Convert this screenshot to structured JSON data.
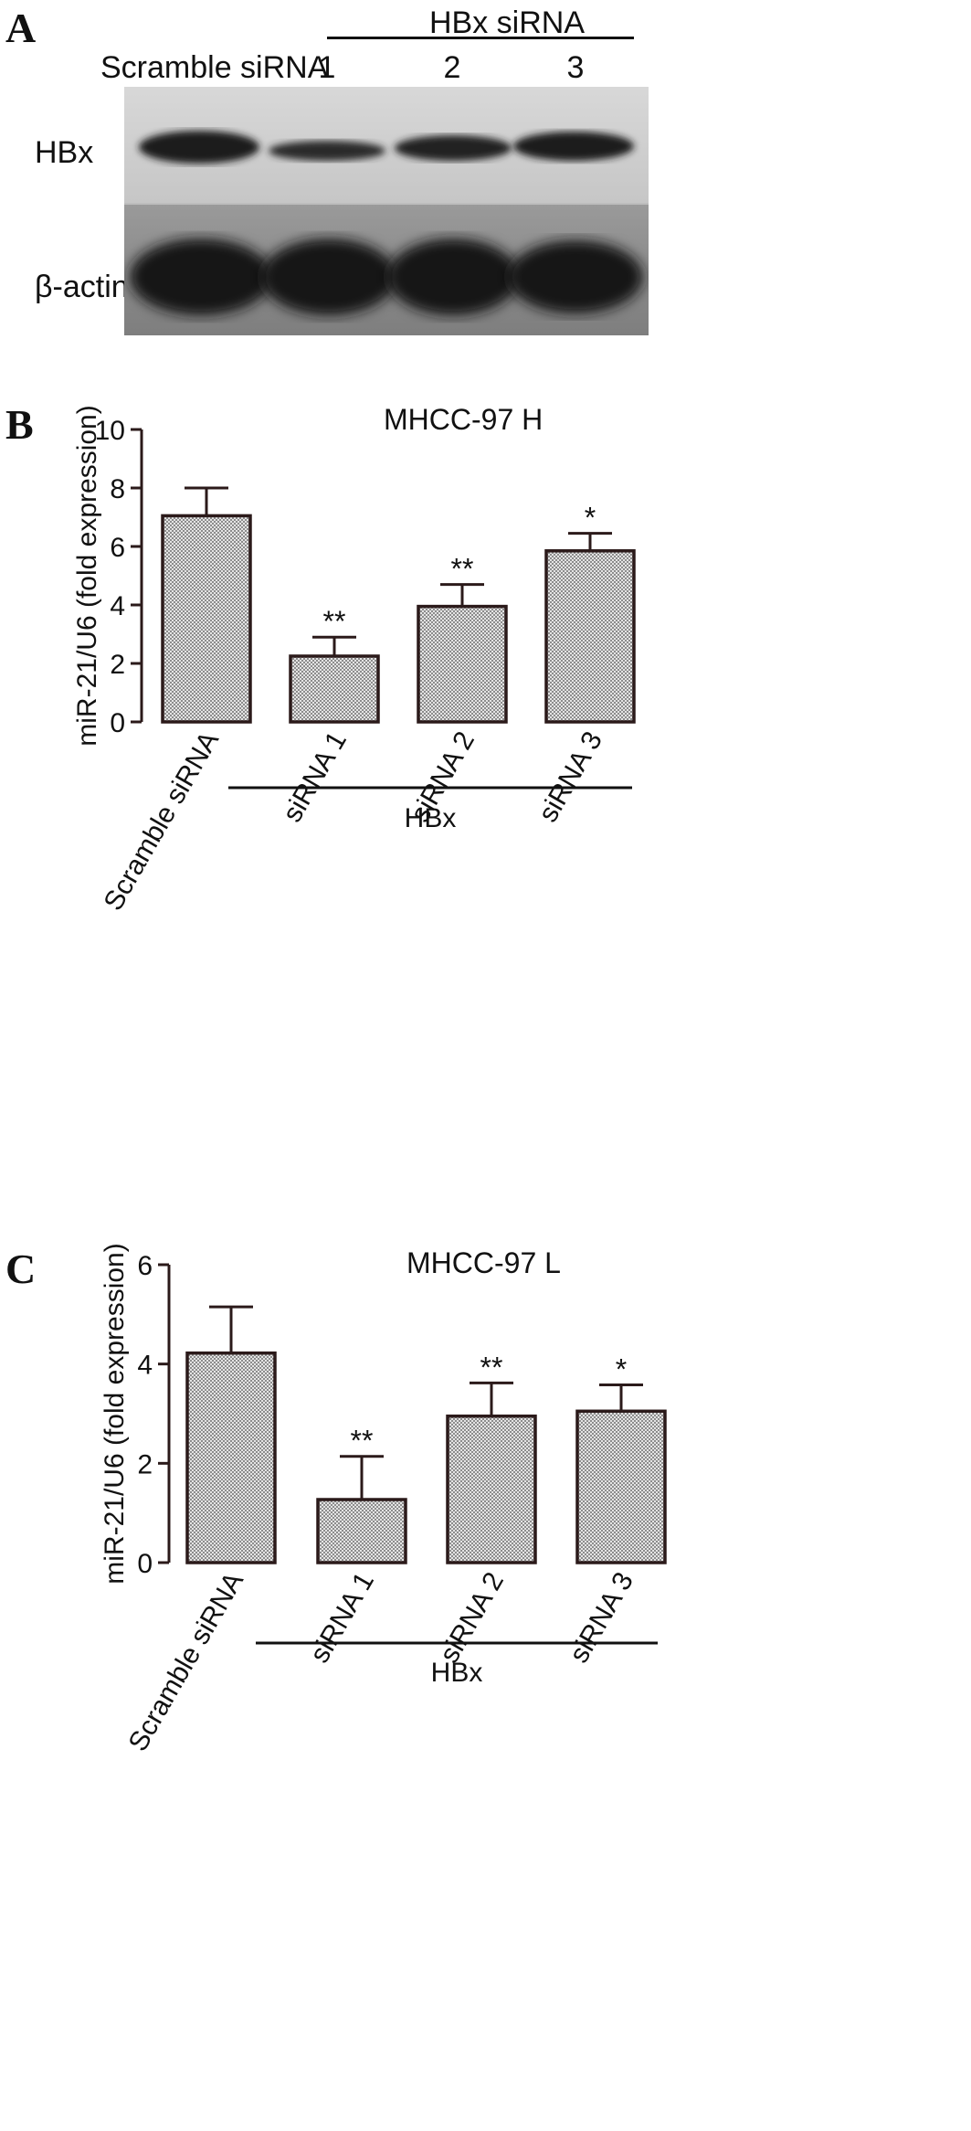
{
  "panel_a": {
    "letter": "A",
    "group_label": "HBx siRNA",
    "control_label": "Scramble siRNA",
    "lanes": [
      "1",
      "2",
      "3"
    ],
    "row_labels": [
      "HBx",
      "β-actin"
    ],
    "colors": {
      "blot_bg_top": "#cfcfcf",
      "blot_bg_bottom": "#8a8a8a",
      "band": "#1a1a1a"
    }
  },
  "chart_data": [
    {
      "panel": "B",
      "type": "bar",
      "title": "MHCC-97 H",
      "ylabel": "miR-21/U6 (fold expression)",
      "ylim": [
        0,
        10
      ],
      "yticks": [
        0,
        2,
        4,
        6,
        8,
        10
      ],
      "categories": [
        "Scramble siRNA",
        "siRNA 1",
        "siRNA 2",
        "siRNA 3"
      ],
      "values": [
        7.05,
        2.25,
        3.95,
        5.85
      ],
      "errors": [
        0.95,
        0.65,
        0.75,
        0.6
      ],
      "significance": [
        "",
        "**",
        "**",
        "*"
      ],
      "group_label": "HBx",
      "grid": false,
      "colors": {
        "bar_fill": "#cfcfcf",
        "bar_stroke": "#2b1a1a"
      }
    },
    {
      "panel": "C",
      "type": "bar",
      "title": "MHCC-97 L",
      "ylabel": "miR-21/U6 (fold expression)",
      "ylim": [
        0,
        6
      ],
      "yticks": [
        0,
        2,
        4,
        6
      ],
      "categories": [
        "Scramble siRNA",
        "siRNA 1",
        "siRNA 2",
        "siRNA 3"
      ],
      "values": [
        4.22,
        1.27,
        2.95,
        3.05
      ],
      "errors": [
        0.93,
        0.87,
        0.67,
        0.53
      ],
      "significance": [
        "",
        "**",
        "**",
        "*"
      ],
      "group_label": "HBx",
      "grid": false,
      "colors": {
        "bar_fill": "#cfcfcf",
        "bar_stroke": "#2b1a1a"
      }
    }
  ]
}
